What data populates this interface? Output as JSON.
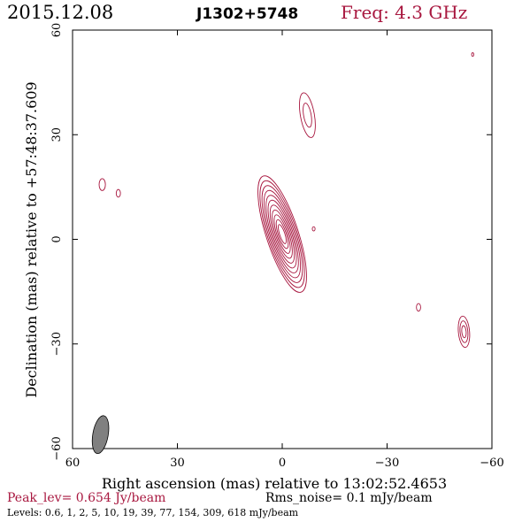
{
  "header": {
    "date": "2015.12.08",
    "source": "J1302+5748",
    "freq": "Freq: 4.3 GHz"
  },
  "footer": {
    "peak": "Peak_lev=  0.654 Jy/beam",
    "rms": "Rms_noise=  0.1 mJy/beam",
    "levels": "Levels: 0.6,   1,   2,   5,   10,   19,   39,   77,  154,  309,  618 mJy/beam"
  },
  "colors": {
    "contour": "#a8173f",
    "frame": "#000000",
    "beam": "#808080",
    "peak_text": "#a8173f",
    "freq_text": "#a8173f"
  },
  "chart_data": {
    "type": "contour",
    "xlabel": "Right ascension (mas) relative to 13:02:52.4653",
    "ylabel": "Declination (mas) relative to +57:48:37.609",
    "xlim": [
      60,
      -60
    ],
    "ylim": [
      -60,
      60
    ],
    "xticks": [
      60,
      30,
      0,
      -30,
      -60
    ],
    "yticks": [
      -60,
      -30,
      0,
      30,
      60
    ],
    "xtick_labels": [
      "60",
      "30",
      "0",
      "−30",
      "−60"
    ],
    "ytick_labels": [
      "−60",
      "−30",
      "0",
      "30",
      "60"
    ],
    "levels_mJy": [
      0.6,
      1,
      2,
      5,
      10,
      19,
      39,
      77,
      154,
      309,
      618
    ],
    "peak_Jy_per_beam": 0.654,
    "rms_mJy_per_beam": 0.1,
    "beam": {
      "x": 52,
      "y": -56,
      "major": 5.5,
      "minor": 2.2,
      "pa": 10
    },
    "core": {
      "x": 0,
      "y": 1.5,
      "major": 17.5,
      "minor": 4.6,
      "pa": -18,
      "n_levels": 11
    },
    "components": [
      {
        "x": -7.2,
        "y": 35.6,
        "major": 6.5,
        "minor": 2.0,
        "pa": -10,
        "n_levels": 2
      },
      {
        "x": 51.5,
        "y": 15.7,
        "major": 1.7,
        "minor": 0.9,
        "pa": 0,
        "n_levels": 1
      },
      {
        "x": 46.9,
        "y": 13.2,
        "major": 1.1,
        "minor": 0.6,
        "pa": 0,
        "n_levels": 1
      },
      {
        "x": -9.0,
        "y": 3.0,
        "major": 0.6,
        "minor": 0.4,
        "pa": 0,
        "n_levels": 1
      },
      {
        "x": -39.0,
        "y": -19.5,
        "major": 1.1,
        "minor": 0.6,
        "pa": 0,
        "n_levels": 1
      },
      {
        "x": -52.0,
        "y": -26.5,
        "major": 4.5,
        "minor": 1.6,
        "pa": -5,
        "n_levels": 3
      },
      {
        "x": -54.5,
        "y": 53.0,
        "major": 0.5,
        "minor": 0.3,
        "pa": 0,
        "n_levels": 1
      }
    ]
  }
}
